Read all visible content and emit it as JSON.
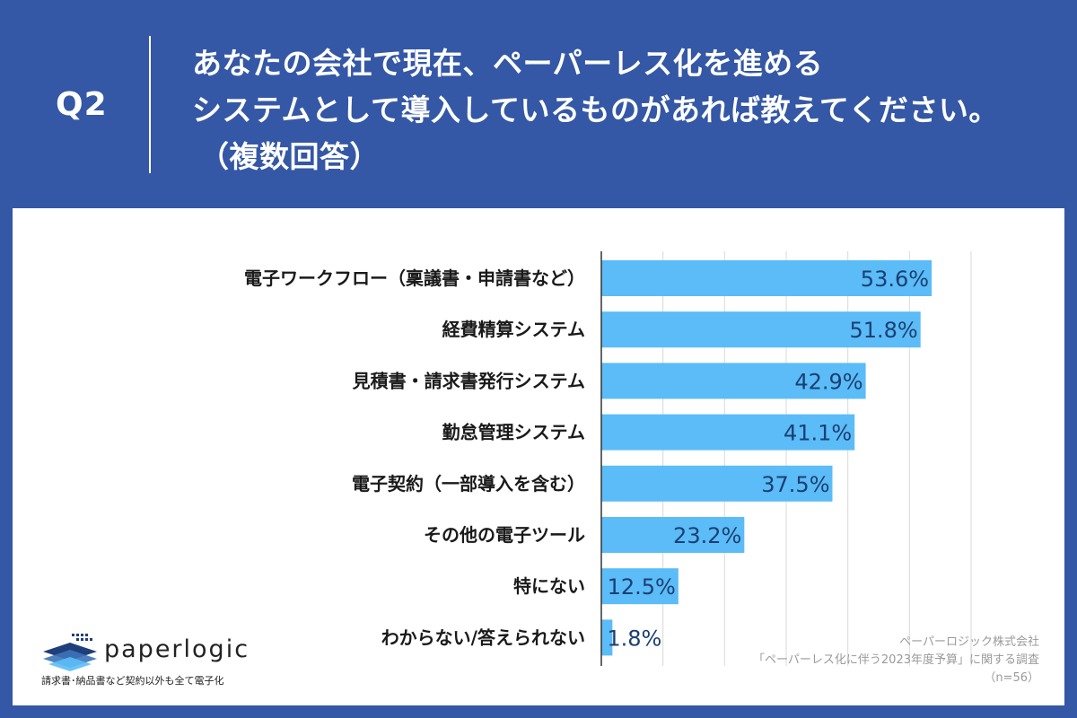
{
  "header": {
    "q_number": "Q2",
    "question_lines": [
      "あなたの会社で現在、ペーパーレス化を進める",
      "システムとして導入しているものがあれば教えてください。",
      "（複数回答）"
    ]
  },
  "colors": {
    "background": "#3457a6",
    "panel": "#ffffff",
    "bar": "#5bbcf7",
    "value_text": "#1b3f73",
    "gridline": "#d9d9d9"
  },
  "chart_data": {
    "type": "bar",
    "orientation": "horizontal",
    "categories": [
      "電子ワークフロー（稟議書・申請書など）",
      "経費精算システム",
      "見積書・請求書発行システム",
      "勤怠管理システム",
      "電子契約（一部導入を含む）",
      "その他の電子ツール",
      "特にない",
      "わからない/答えられない"
    ],
    "values": [
      53.6,
      51.8,
      42.9,
      41.1,
      37.5,
      23.2,
      12.5,
      1.8
    ],
    "value_labels": [
      "53.6%",
      "51.8%",
      "42.9%",
      "41.1%",
      "37.5%",
      "23.2%",
      "12.5%",
      "1.8%"
    ],
    "xlim": [
      0,
      60
    ],
    "grid": true,
    "legend": "none"
  },
  "logo": {
    "name": "paperlogic",
    "tagline": "請求書･納品書など契約以外も全て電子化"
  },
  "source": {
    "lines": [
      "ペーパーロジック株式会社",
      "「ペーパーレス化に伴う2023年度予算」に関する調査",
      "（n=56）"
    ]
  }
}
